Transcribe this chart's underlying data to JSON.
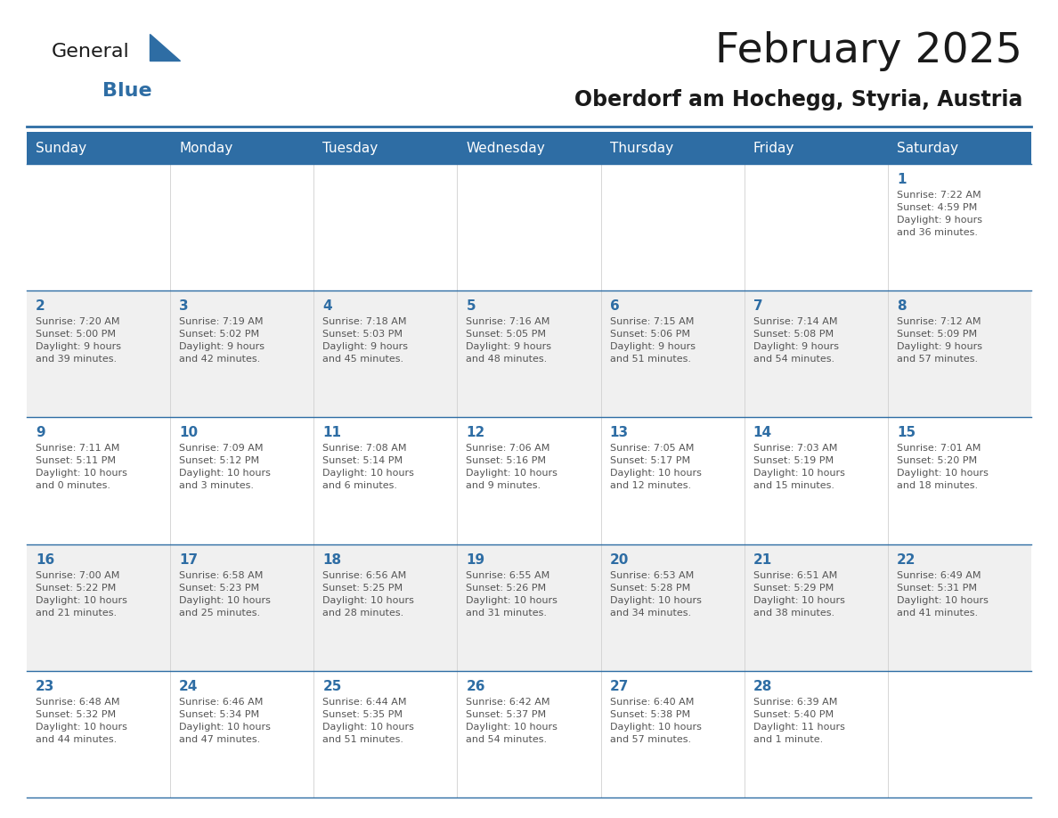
{
  "title": "February 2025",
  "subtitle": "Oberdorf am Hochegg, Styria, Austria",
  "header_bg": "#2E6DA4",
  "header_text": "#FFFFFF",
  "cell_bg_odd": "#F0F0F0",
  "cell_bg_even": "#FFFFFF",
  "cell_border": "#2E6DA4",
  "day_headers": [
    "Sunday",
    "Monday",
    "Tuesday",
    "Wednesday",
    "Thursday",
    "Friday",
    "Saturday"
  ],
  "title_color": "#1a1a1a",
  "subtitle_color": "#1a1a1a",
  "day_number_color": "#2E6DA4",
  "cell_text_color": "#555555",
  "logo_general_color": "#1a1a1a",
  "logo_blue_color": "#2E6DA4",
  "calendar": [
    [
      null,
      null,
      null,
      null,
      null,
      null,
      {
        "day": "1",
        "sunrise": "7:22 AM",
        "sunset": "4:59 PM",
        "daylight": "9 hours\nand 36 minutes."
      }
    ],
    [
      {
        "day": "2",
        "sunrise": "7:20 AM",
        "sunset": "5:00 PM",
        "daylight": "9 hours\nand 39 minutes."
      },
      {
        "day": "3",
        "sunrise": "7:19 AM",
        "sunset": "5:02 PM",
        "daylight": "9 hours\nand 42 minutes."
      },
      {
        "day": "4",
        "sunrise": "7:18 AM",
        "sunset": "5:03 PM",
        "daylight": "9 hours\nand 45 minutes."
      },
      {
        "day": "5",
        "sunrise": "7:16 AM",
        "sunset": "5:05 PM",
        "daylight": "9 hours\nand 48 minutes."
      },
      {
        "day": "6",
        "sunrise": "7:15 AM",
        "sunset": "5:06 PM",
        "daylight": "9 hours\nand 51 minutes."
      },
      {
        "day": "7",
        "sunrise": "7:14 AM",
        "sunset": "5:08 PM",
        "daylight": "9 hours\nand 54 minutes."
      },
      {
        "day": "8",
        "sunrise": "7:12 AM",
        "sunset": "5:09 PM",
        "daylight": "9 hours\nand 57 minutes."
      }
    ],
    [
      {
        "day": "9",
        "sunrise": "7:11 AM",
        "sunset": "5:11 PM",
        "daylight": "10 hours\nand 0 minutes."
      },
      {
        "day": "10",
        "sunrise": "7:09 AM",
        "sunset": "5:12 PM",
        "daylight": "10 hours\nand 3 minutes."
      },
      {
        "day": "11",
        "sunrise": "7:08 AM",
        "sunset": "5:14 PM",
        "daylight": "10 hours\nand 6 minutes."
      },
      {
        "day": "12",
        "sunrise": "7:06 AM",
        "sunset": "5:16 PM",
        "daylight": "10 hours\nand 9 minutes."
      },
      {
        "day": "13",
        "sunrise": "7:05 AM",
        "sunset": "5:17 PM",
        "daylight": "10 hours\nand 12 minutes."
      },
      {
        "day": "14",
        "sunrise": "7:03 AM",
        "sunset": "5:19 PM",
        "daylight": "10 hours\nand 15 minutes."
      },
      {
        "day": "15",
        "sunrise": "7:01 AM",
        "sunset": "5:20 PM",
        "daylight": "10 hours\nand 18 minutes."
      }
    ],
    [
      {
        "day": "16",
        "sunrise": "7:00 AM",
        "sunset": "5:22 PM",
        "daylight": "10 hours\nand 21 minutes."
      },
      {
        "day": "17",
        "sunrise": "6:58 AM",
        "sunset": "5:23 PM",
        "daylight": "10 hours\nand 25 minutes."
      },
      {
        "day": "18",
        "sunrise": "6:56 AM",
        "sunset": "5:25 PM",
        "daylight": "10 hours\nand 28 minutes."
      },
      {
        "day": "19",
        "sunrise": "6:55 AM",
        "sunset": "5:26 PM",
        "daylight": "10 hours\nand 31 minutes."
      },
      {
        "day": "20",
        "sunrise": "6:53 AM",
        "sunset": "5:28 PM",
        "daylight": "10 hours\nand 34 minutes."
      },
      {
        "day": "21",
        "sunrise": "6:51 AM",
        "sunset": "5:29 PM",
        "daylight": "10 hours\nand 38 minutes."
      },
      {
        "day": "22",
        "sunrise": "6:49 AM",
        "sunset": "5:31 PM",
        "daylight": "10 hours\nand 41 minutes."
      }
    ],
    [
      {
        "day": "23",
        "sunrise": "6:48 AM",
        "sunset": "5:32 PM",
        "daylight": "10 hours\nand 44 minutes."
      },
      {
        "day": "24",
        "sunrise": "6:46 AM",
        "sunset": "5:34 PM",
        "daylight": "10 hours\nand 47 minutes."
      },
      {
        "day": "25",
        "sunrise": "6:44 AM",
        "sunset": "5:35 PM",
        "daylight": "10 hours\nand 51 minutes."
      },
      {
        "day": "26",
        "sunrise": "6:42 AM",
        "sunset": "5:37 PM",
        "daylight": "10 hours\nand 54 minutes."
      },
      {
        "day": "27",
        "sunrise": "6:40 AM",
        "sunset": "5:38 PM",
        "daylight": "10 hours\nand 57 minutes."
      },
      {
        "day": "28",
        "sunrise": "6:39 AM",
        "sunset": "5:40 PM",
        "daylight": "11 hours\nand 1 minute."
      },
      null
    ]
  ]
}
